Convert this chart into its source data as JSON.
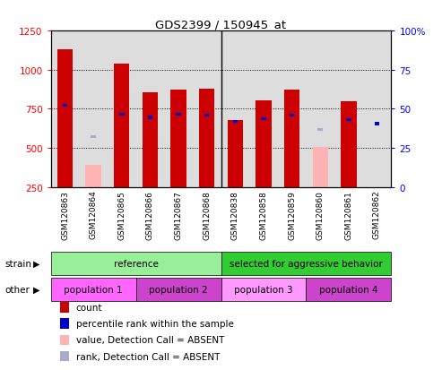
{
  "title": "GDS2399 / 150945_at",
  "samples": [
    "GSM120863",
    "GSM120864",
    "GSM120865",
    "GSM120866",
    "GSM120867",
    "GSM120868",
    "GSM120838",
    "GSM120858",
    "GSM120859",
    "GSM120860",
    "GSM120861",
    "GSM120862"
  ],
  "count_values": [
    1130,
    null,
    1040,
    855,
    870,
    875,
    680,
    805,
    870,
    null,
    795,
    null
  ],
  "count_absent_values": [
    null,
    390,
    null,
    null,
    null,
    null,
    null,
    null,
    null,
    505,
    null,
    null
  ],
  "rank_values": [
    770,
    null,
    715,
    695,
    715,
    710,
    670,
    685,
    710,
    null,
    680,
    655
  ],
  "rank_absent_values": [
    null,
    570,
    null,
    null,
    null,
    null,
    null,
    null,
    null,
    620,
    null,
    null
  ],
  "left_ylim": [
    250,
    1250
  ],
  "right_ylim": [
    0,
    100
  ],
  "left_yticks": [
    250,
    500,
    750,
    1000,
    1250
  ],
  "right_yticks": [
    0,
    25,
    50,
    75,
    100
  ],
  "bar_width": 0.55,
  "count_color": "#CC0000",
  "count_absent_color": "#FFB3B3",
  "rank_color": "#0000CC",
  "rank_absent_color": "#AAAACC",
  "strain_row": [
    {
      "label": "reference",
      "start": 0,
      "end": 6,
      "color": "#99EE99"
    },
    {
      "label": "selected for aggressive behavior",
      "start": 6,
      "end": 12,
      "color": "#33CC33"
    }
  ],
  "other_row": [
    {
      "label": "population 1",
      "start": 0,
      "end": 3,
      "color": "#FF66FF"
    },
    {
      "label": "population 2",
      "start": 3,
      "end": 6,
      "color": "#CC44CC"
    },
    {
      "label": "population 3",
      "start": 6,
      "end": 9,
      "color": "#FF99FF"
    },
    {
      "label": "population 4",
      "start": 9,
      "end": 12,
      "color": "#CC44CC"
    }
  ],
  "legend_items": [
    {
      "label": "count",
      "color": "#CC0000"
    },
    {
      "label": "percentile rank within the sample",
      "color": "#0000CC"
    },
    {
      "label": "value, Detection Call = ABSENT",
      "color": "#FFB3B3"
    },
    {
      "label": "rank, Detection Call = ABSENT",
      "color": "#AAAACC"
    }
  ]
}
